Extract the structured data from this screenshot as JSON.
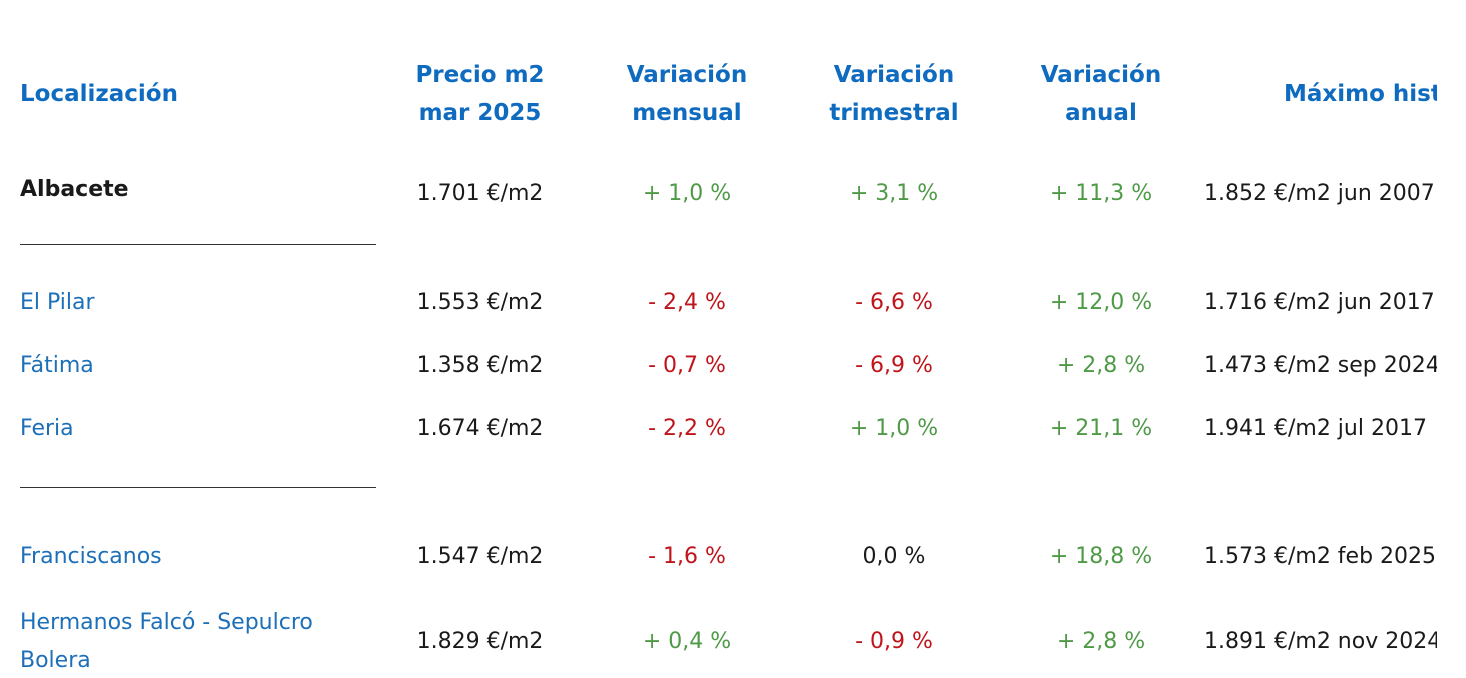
{
  "headers": {
    "localizacion": "Localización",
    "precio_l1": "Precio m2",
    "precio_l2": "mar 2025",
    "mensual_l1": "Variación",
    "mensual_l2": "mensual",
    "trimestral_l1": "Variación",
    "trimestral_l2": "trimestral",
    "anual_l1": "Variación",
    "anual_l2": "anual",
    "maximo": "Máximo histórico"
  },
  "total": {
    "name": "Albacete",
    "price": "1.701 €/m2",
    "monthly": "+ 1,0 %",
    "quarterly": "+ 3,1 %",
    "annual": "+ 11,3 %",
    "max": "1.852 €/m2 jun 2007"
  },
  "rows": [
    {
      "name": "El Pilar",
      "price": "1.553 €/m2",
      "monthly": "- 2,4 %",
      "quarterly": "- 6,6 %",
      "annual": "+ 12,0 %",
      "max": "1.716 €/m2 jun 2017"
    },
    {
      "name": "Fátima",
      "price": "1.358 €/m2",
      "monthly": "- 0,7 %",
      "quarterly": "- 6,9 %",
      "annual": "+ 2,8 %",
      "max": "1.473 €/m2 sep 2024"
    },
    {
      "name": "Feria",
      "price": "1.674 €/m2",
      "monthly": "- 2,2 %",
      "quarterly": "+ 1,0 %",
      "annual": "+ 21,1 %",
      "max": "1.941 €/m2 jul 2017"
    },
    {
      "name": "Franciscanos",
      "price": "1.547 €/m2",
      "monthly": "- 1,6 %",
      "quarterly": "0,0 %",
      "annual": "+ 18,8 %",
      "max": "1.573 €/m2 feb 2025"
    },
    {
      "name": "Hermanos Falcó - Sepulcro Bolera",
      "price": "1.829 €/m2",
      "monthly": "+ 0,4 %",
      "quarterly": "- 0,9 %",
      "annual": "+ 2,8 %",
      "max": "1.891 €/m2 nov 2024"
    }
  ],
  "colors": {
    "header_blue": "#0f6bbf",
    "link_blue": "#1d6fb8",
    "positive_green": "#4f9a47",
    "negative_red": "#c0141b",
    "text_dark": "#1a1a1a"
  }
}
